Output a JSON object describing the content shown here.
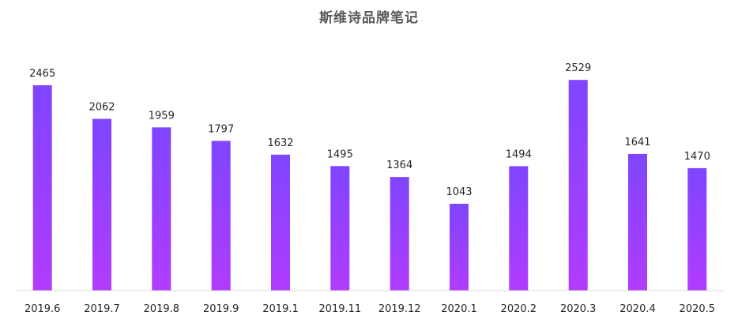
{
  "title": "斯维诗品牌笔记",
  "colors": {
    "bar_top": "#7f45ff",
    "bar_bottom": "#b13cff",
    "axis": "#d9d9d9",
    "label": "#262626",
    "title": "#595959"
  },
  "chart_data": {
    "type": "bar",
    "title": "斯维诗品牌笔记",
    "categories": [
      "2019.6",
      "2019.7",
      "2019.8",
      "2019.9",
      "2019.1",
      "2019.11",
      "2019.12",
      "2020.1",
      "2020.2",
      "2020.3",
      "2020.4",
      "2020.5"
    ],
    "values": [
      2465,
      2062,
      1959,
      1797,
      1632,
      1495,
      1364,
      1043,
      1494,
      2529,
      1641,
      1470
    ],
    "xlabel": "",
    "ylabel": "",
    "ylim": [
      0,
      2600
    ],
    "grid": false,
    "legend": "none"
  }
}
